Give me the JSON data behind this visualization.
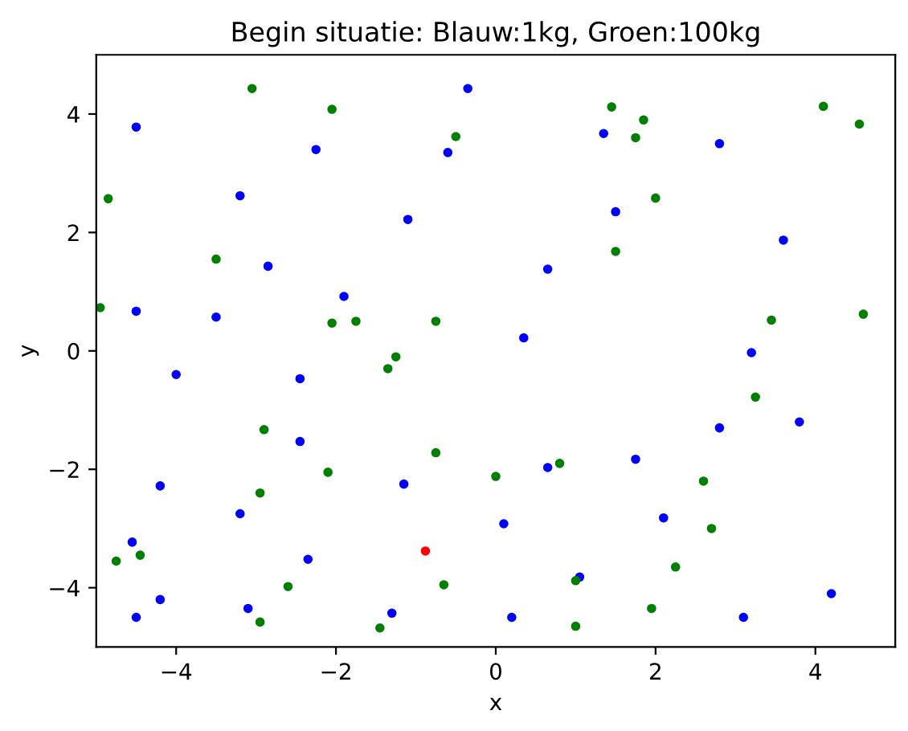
{
  "chart_data": {
    "type": "scatter",
    "title": "Begin situatie: Blauw:1kg, Groen:100kg",
    "xlabel": "x",
    "ylabel": "y",
    "xlim": [
      -5,
      5
    ],
    "ylim": [
      -5,
      5
    ],
    "xticks": [
      {
        "value": -4,
        "label": "−4"
      },
      {
        "value": -2,
        "label": "−2"
      },
      0,
      2,
      4
    ],
    "yticks": [
      {
        "value": -4,
        "label": "−4"
      },
      {
        "value": -2,
        "label": "−2"
      },
      0,
      2,
      4
    ],
    "grid": false,
    "marker": "circle",
    "series": [
      {
        "color": "#0000ff",
        "x": [
          -4.5,
          -3.2,
          -2.85,
          -2.25,
          -1.1,
          -0.6,
          -0.35,
          -1.9,
          -3.5,
          -4.5,
          -4.0,
          -2.45,
          0.65,
          0.35,
          1.35,
          1.5,
          2.8,
          3.6,
          3.2,
          2.8,
          3.8,
          -2.45,
          -4.2,
          -3.2,
          -1.15,
          0.65,
          1.75,
          -4.55,
          -4.2,
          -2.35,
          -4.5,
          -3.1,
          -1.3,
          0.2,
          0.1,
          1.05,
          2.1,
          3.1,
          4.2
        ],
        "values": [
          3.78,
          2.62,
          1.43,
          3.4,
          2.22,
          3.35,
          4.43,
          0.92,
          0.57,
          0.67,
          -0.4,
          -0.47,
          1.38,
          0.22,
          3.67,
          2.35,
          3.5,
          1.87,
          -0.03,
          -1.3,
          -1.2,
          -1.53,
          -2.28,
          -2.75,
          -2.25,
          -1.97,
          -1.83,
          -3.23,
          -4.2,
          -3.52,
          -4.5,
          -4.35,
          -4.43,
          -4.5,
          -2.92,
          -3.82,
          -2.82,
          -4.5,
          -4.1
        ]
      },
      {
        "color": "#008000",
        "x": [
          -4.85,
          -3.05,
          -2.05,
          -0.5,
          -3.5,
          -4.95,
          -2.05,
          -1.75,
          -0.75,
          -1.25,
          -1.35,
          1.45,
          1.75,
          1.85,
          2.0,
          1.5,
          4.1,
          4.55,
          3.45,
          4.6,
          3.25,
          -2.9,
          -2.95,
          -2.1,
          -0.75,
          0.0,
          0.8,
          2.6,
          2.7,
          2.25,
          -4.75,
          -4.45,
          -2.6,
          -2.95,
          -1.45,
          -0.65,
          1.0,
          1.0,
          1.95
        ],
        "values": [
          2.57,
          4.43,
          4.08,
          3.62,
          1.55,
          0.73,
          0.47,
          0.5,
          0.5,
          -0.1,
          -0.3,
          4.12,
          3.6,
          3.9,
          2.58,
          1.68,
          4.13,
          3.83,
          0.52,
          0.62,
          -0.78,
          -1.33,
          -2.4,
          -2.05,
          -1.72,
          -2.12,
          -1.9,
          -2.2,
          -3.0,
          -3.65,
          -3.55,
          -3.45,
          -3.98,
          -4.58,
          -4.68,
          -3.95,
          -3.88,
          -4.65,
          -4.35
        ]
      },
      {
        "color": "#ff0000",
        "x": [
          -0.88
        ],
        "values": [
          -3.38
        ]
      }
    ]
  }
}
